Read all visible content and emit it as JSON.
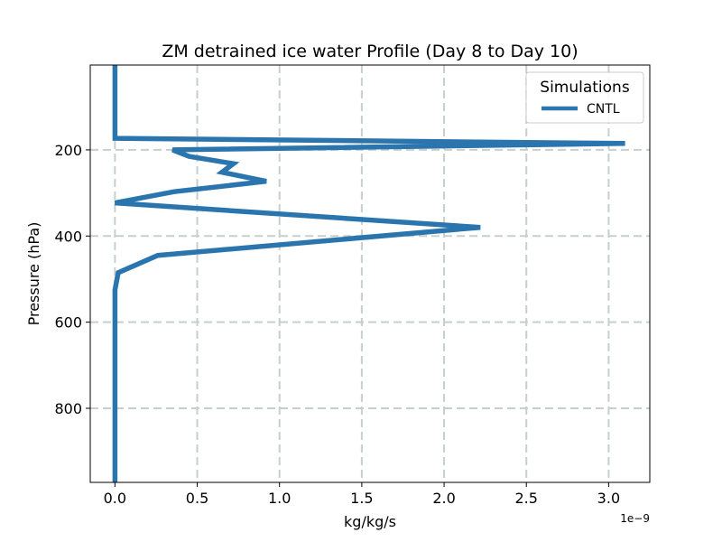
{
  "chart_data": {
    "type": "line",
    "title": "ZM detrained ice water Profile (Day 8 to Day 10)",
    "xlabel": "kg/kg/s",
    "ylabel": "Pressure (hPa)",
    "x_offset_label": "1e−9",
    "xlim": [
      -0.15,
      3.25
    ],
    "ylim": [
      972,
      3
    ],
    "y_inverted": true,
    "grid": true,
    "grid_color": "#c5d0ce",
    "x_ticks": [
      0.0,
      0.5,
      1.0,
      1.5,
      2.0,
      2.5,
      3.0
    ],
    "x_tick_labels": [
      "0.0",
      "0.5",
      "1.0",
      "1.5",
      "2.0",
      "2.5",
      "3.0"
    ],
    "y_ticks": [
      200,
      400,
      600,
      800
    ],
    "y_tick_labels": [
      "200",
      "400",
      "600",
      "800"
    ],
    "legend": {
      "title": "Simulations",
      "placement": "top-right"
    },
    "series": [
      {
        "name": "CNTL",
        "color": "#2a75ad",
        "x": [
          0.0,
          0.0,
          0.0,
          3.1,
          0.35,
          0.45,
          0.72,
          0.65,
          0.92,
          0.36,
          0.0,
          2.22,
          0.26,
          0.02,
          0.0,
          0.0,
          0.0,
          0.0
        ],
        "y": [
          3,
          60,
          173,
          185,
          200,
          215,
          232,
          252,
          273,
          297,
          323,
          380,
          445,
          485,
          525,
          600,
          800,
          972
        ]
      }
    ]
  }
}
